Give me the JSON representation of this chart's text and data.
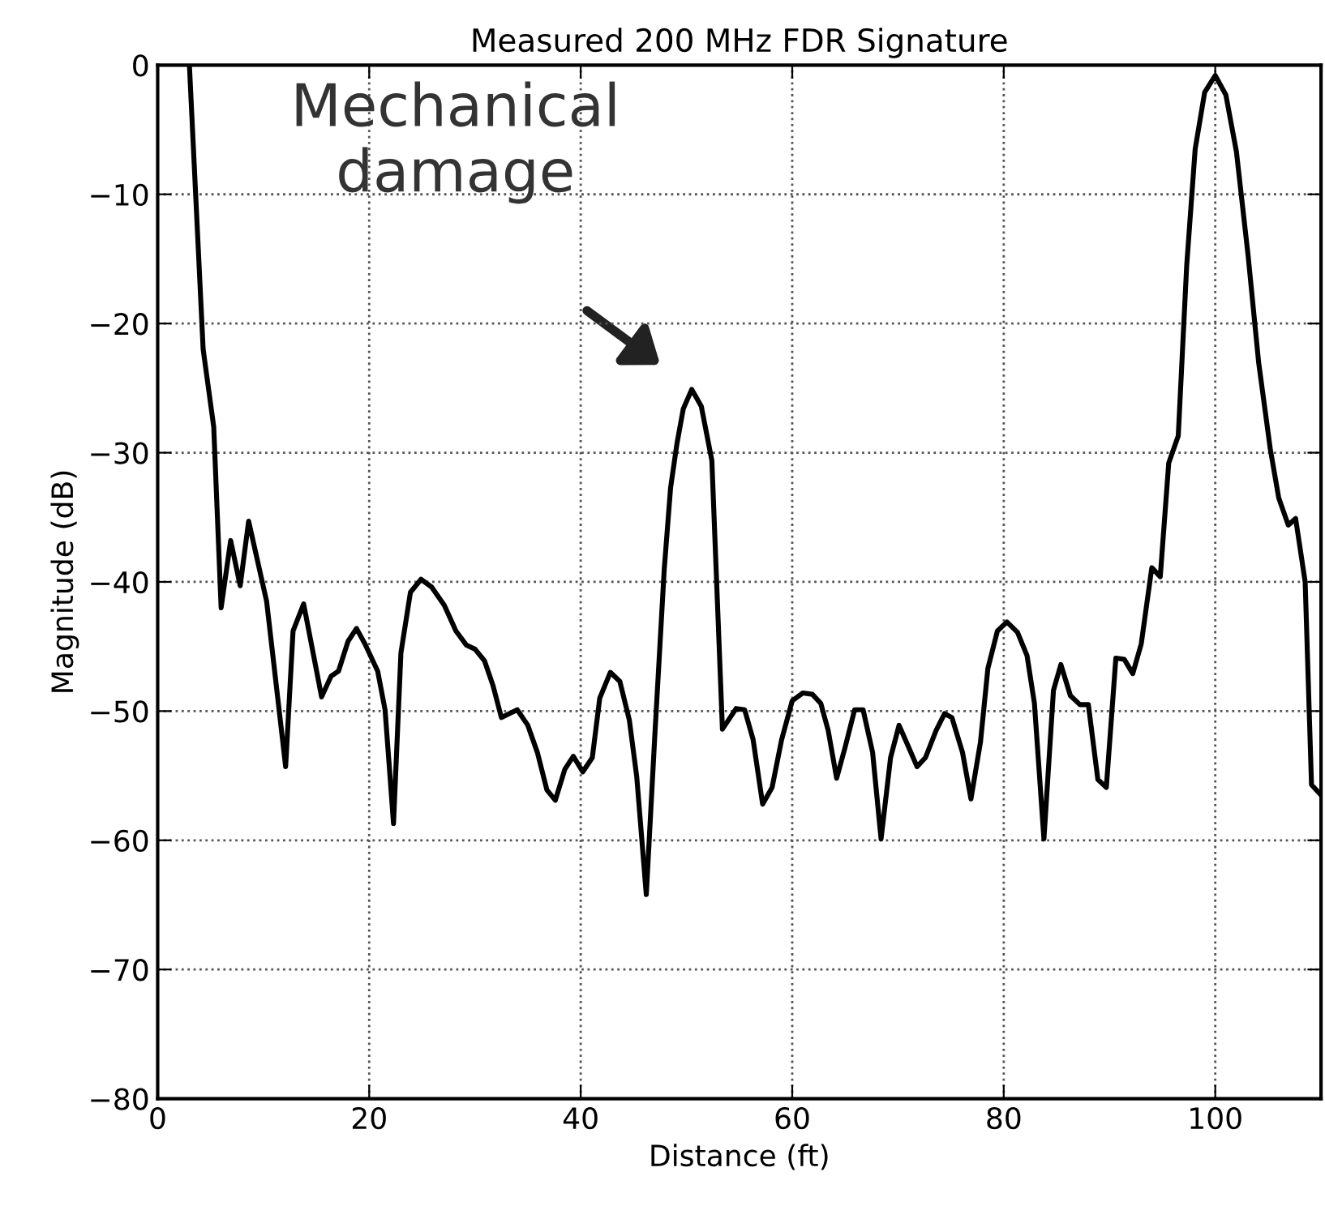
{
  "chart_data": {
    "type": "line",
    "title": "Measured 200 MHz FDR Signature",
    "xlabel": "Distance (ft)",
    "ylabel": "Magnitude (dB)",
    "xlim": [
      0,
      110
    ],
    "ylim": [
      -80,
      0
    ],
    "xticks": [
      0,
      20,
      40,
      60,
      80,
      100
    ],
    "yticks": [
      -80,
      -70,
      -60,
      -50,
      -40,
      -30,
      -20,
      -10,
      0
    ],
    "grid": true,
    "marker": "none",
    "line_style": "solid",
    "annotations": [
      "Mechanical\ndamage"
    ],
    "series": [
      {
        "color": "#000000",
        "x": [
          3.0,
          4.3,
          5.3,
          6.0,
          6.9,
          7.8,
          8.6,
          10.3,
          12.1,
          12.8,
          13.8,
          15.5,
          16.4,
          17.1,
          18.0,
          18.8,
          19.6,
          20.8,
          21.5,
          22.3,
          23.0,
          23.9,
          24.9,
          25.9,
          27.1,
          28.2,
          29.2,
          30.0,
          30.9,
          31.7,
          32.5,
          34.0,
          35.0,
          35.9,
          36.8,
          37.6,
          38.5,
          39.3,
          40.2,
          41.1,
          41.8,
          42.8,
          43.7,
          44.6,
          45.3,
          46.2,
          47.0,
          47.9,
          48.5,
          49.1,
          49.7,
          50.5,
          51.4,
          52.4,
          53.4,
          54.7,
          55.5,
          56.3,
          57.2,
          58.1,
          59.0,
          60.0,
          61.0,
          61.9,
          62.7,
          63.4,
          64.2,
          65.0,
          65.9,
          66.7,
          67.6,
          68.4,
          69.3,
          70.1,
          70.9,
          71.8,
          72.6,
          73.6,
          74.4,
          75.1,
          76.1,
          76.9,
          77.8,
          78.5,
          79.4,
          80.3,
          81.3,
          82.2,
          82.9,
          83.8,
          84.7,
          85.4,
          86.3,
          87.2,
          88.0,
          88.9,
          89.7,
          90.6,
          91.4,
          92.2,
          93.0,
          94.0,
          94.8,
          95.6,
          96.5,
          97.3,
          98.1,
          99.0,
          100.0,
          101.0,
          102.0,
          103.1,
          104.1,
          105.2,
          106.0,
          106.9,
          107.6,
          108.5,
          109.1,
          110.0
        ],
        "values": [
          0,
          -22,
          -28,
          -42,
          -36.8,
          -40.3,
          -35.3,
          -41.5,
          -54.3,
          -43.8,
          -41.7,
          -48.9,
          -47.3,
          -46.9,
          -44.6,
          -43.6,
          -44.8,
          -46.9,
          -49.9,
          -58.7,
          -45.5,
          -40.8,
          -39.8,
          -40.4,
          -41.8,
          -43.8,
          -44.9,
          -45.2,
          -46.1,
          -48.0,
          -50.5,
          -49.9,
          -51.1,
          -53.2,
          -56.1,
          -56.9,
          -54.5,
          -53.5,
          -54.7,
          -53.6,
          -49.0,
          -47.0,
          -47.7,
          -50.7,
          -55.1,
          -64.2,
          -52.0,
          -39.0,
          -32.7,
          -29.3,
          -26.6,
          -25.1,
          -26.4,
          -30.6,
          -51.4,
          -49.8,
          -49.9,
          -52.2,
          -57.2,
          -55.9,
          -52.2,
          -49.2,
          -48.6,
          -48.7,
          -49.4,
          -51.5,
          -55.2,
          -52.8,
          -49.9,
          -49.9,
          -53.2,
          -59.9,
          -53.6,
          -51.1,
          -52.6,
          -54.3,
          -53.6,
          -51.5,
          -50.2,
          -50.5,
          -53.2,
          -56.8,
          -52.4,
          -46.7,
          -43.8,
          -43.1,
          -43.9,
          -45.7,
          -49.4,
          -59.9,
          -48.4,
          -46.4,
          -48.8,
          -49.5,
          -49.5,
          -55.3,
          -55.9,
          -45.9,
          -46.0,
          -47.1,
          -44.8,
          -38.9,
          -39.6,
          -30.8,
          -28.7,
          -15.5,
          -6.5,
          -2.1,
          -0.8,
          -2.3,
          -6.7,
          -14.7,
          -23.0,
          -29.7,
          -33.5,
          -35.6,
          -35.1,
          -40.0,
          -55.7,
          -56.5
        ]
      }
    ]
  }
}
